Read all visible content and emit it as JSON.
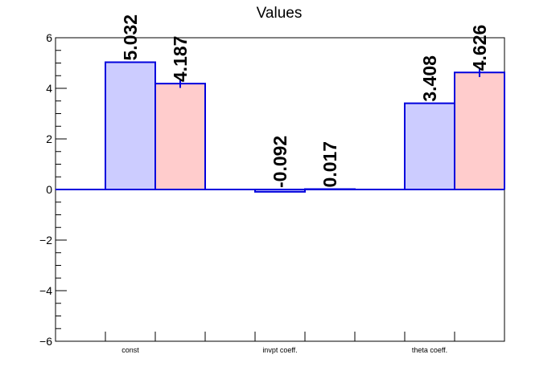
{
  "chart_data": {
    "type": "bar",
    "title": "Values",
    "xlabel": "",
    "ylabel": "",
    "categories": [
      "const",
      "invpt coeff.",
      "theta coeff."
    ],
    "ylim": [
      -6,
      6
    ],
    "yticks": [
      -6,
      -4,
      -2,
      0,
      2,
      4,
      6
    ],
    "ytick_labels": [
      "−6",
      "−4",
      "−2",
      "0",
      "2",
      "4",
      "6"
    ],
    "grid": false,
    "series": [
      {
        "values": [
          5.032,
          -0.092,
          3.408
        ],
        "labels": [
          "5.032",
          "-0.092",
          "3.408"
        ],
        "errors": [
          0,
          0,
          0
        ],
        "fill": "#ccccff",
        "stroke": "#0000dd"
      },
      {
        "values": [
          4.187,
          0.017,
          4.626
        ],
        "labels": [
          "4.187",
          "0.017",
          "4.626"
        ],
        "errors": [
          0.17,
          0,
          0.18
        ],
        "fill": "#ffcccc",
        "stroke": "#0000dd"
      }
    ],
    "zero_line_color": "#0000dd"
  }
}
